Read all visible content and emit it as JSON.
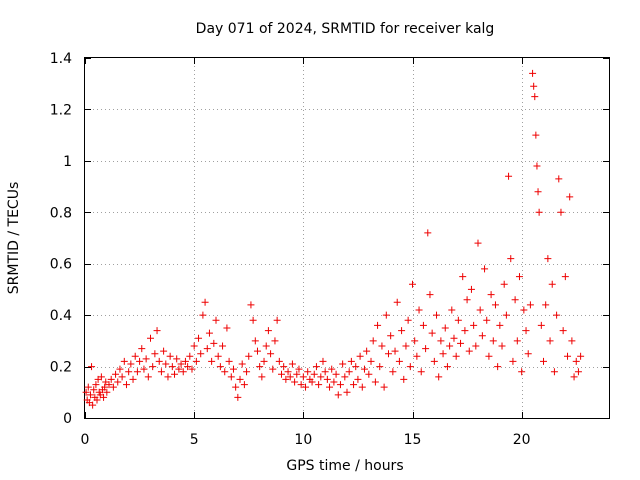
{
  "chart_data": {
    "type": "scatter",
    "title": "Day 071 of 2024, SRMTID for receiver kalg",
    "xlabel": "GPS time / hours",
    "ylabel": "SRMTID / TECUs",
    "xlim": [
      0,
      24
    ],
    "ylim": [
      0,
      1.4
    ],
    "x_ticks": [
      0,
      5,
      10,
      15,
      20
    ],
    "x_tick_labels": [
      "0",
      "5",
      "10",
      "15",
      "20"
    ],
    "y_ticks": [
      0,
      0.2,
      0.4,
      0.6,
      0.8,
      1,
      1.2,
      1.4
    ],
    "y_tick_labels": [
      "0",
      "0.2",
      "0.4",
      "0.6",
      "0.8",
      "1",
      "1.2",
      "1.4"
    ],
    "grid": true,
    "marker": "+",
    "color": "#ee0000",
    "series": [
      {
        "name": "SRMTID",
        "points": [
          [
            0.05,
            0.1
          ],
          [
            0.1,
            0.07
          ],
          [
            0.15,
            0.12
          ],
          [
            0.2,
            0.06
          ],
          [
            0.25,
            0.09
          ],
          [
            0.3,
            0.2
          ],
          [
            0.35,
            0.05
          ],
          [
            0.4,
            0.11
          ],
          [
            0.45,
            0.08
          ],
          [
            0.5,
            0.13
          ],
          [
            0.55,
            0.07
          ],
          [
            0.6,
            0.15
          ],
          [
            0.65,
            0.1
          ],
          [
            0.7,
            0.09
          ],
          [
            0.75,
            0.16
          ],
          [
            0.8,
            0.11
          ],
          [
            0.85,
            0.08
          ],
          [
            0.9,
            0.12
          ],
          [
            0.95,
            0.14
          ],
          [
            1.0,
            0.1
          ],
          [
            1.1,
            0.13
          ],
          [
            1.2,
            0.15
          ],
          [
            1.3,
            0.12
          ],
          [
            1.4,
            0.17
          ],
          [
            1.5,
            0.14
          ],
          [
            1.6,
            0.19
          ],
          [
            1.7,
            0.16
          ],
          [
            1.8,
            0.22
          ],
          [
            1.9,
            0.13
          ],
          [
            2.0,
            0.18
          ],
          [
            2.1,
            0.21
          ],
          [
            2.2,
            0.15
          ],
          [
            2.3,
            0.24
          ],
          [
            2.4,
            0.18
          ],
          [
            2.5,
            0.22
          ],
          [
            2.6,
            0.27
          ],
          [
            2.7,
            0.19
          ],
          [
            2.8,
            0.23
          ],
          [
            2.9,
            0.16
          ],
          [
            3.0,
            0.31
          ],
          [
            3.1,
            0.2
          ],
          [
            3.2,
            0.25
          ],
          [
            3.3,
            0.34
          ],
          [
            3.4,
            0.22
          ],
          [
            3.5,
            0.18
          ],
          [
            3.6,
            0.26
          ],
          [
            3.7,
            0.21
          ],
          [
            3.8,
            0.16
          ],
          [
            3.9,
            0.24
          ],
          [
            4.0,
            0.2
          ],
          [
            4.1,
            0.17
          ],
          [
            4.2,
            0.23
          ],
          [
            4.3,
            0.19
          ],
          [
            4.4,
            0.21
          ],
          [
            4.5,
            0.18
          ],
          [
            4.6,
            0.22
          ],
          [
            4.7,
            0.2
          ],
          [
            4.8,
            0.24
          ],
          [
            4.9,
            0.19
          ],
          [
            5.0,
            0.28
          ],
          [
            5.1,
            0.22
          ],
          [
            5.2,
            0.31
          ],
          [
            5.3,
            0.25
          ],
          [
            5.4,
            0.4
          ],
          [
            5.5,
            0.45
          ],
          [
            5.6,
            0.27
          ],
          [
            5.7,
            0.33
          ],
          [
            5.8,
            0.22
          ],
          [
            5.9,
            0.29
          ],
          [
            6.0,
            0.38
          ],
          [
            6.1,
            0.24
          ],
          [
            6.2,
            0.2
          ],
          [
            6.3,
            0.28
          ],
          [
            6.4,
            0.18
          ],
          [
            6.5,
            0.35
          ],
          [
            6.6,
            0.22
          ],
          [
            6.7,
            0.16
          ],
          [
            6.8,
            0.19
          ],
          [
            6.9,
            0.12
          ],
          [
            7.0,
            0.08
          ],
          [
            7.1,
            0.15
          ],
          [
            7.2,
            0.21
          ],
          [
            7.3,
            0.13
          ],
          [
            7.4,
            0.18
          ],
          [
            7.5,
            0.24
          ],
          [
            7.6,
            0.44
          ],
          [
            7.7,
            0.38
          ],
          [
            7.8,
            0.3
          ],
          [
            7.9,
            0.26
          ],
          [
            8.0,
            0.2
          ],
          [
            8.1,
            0.16
          ],
          [
            8.2,
            0.22
          ],
          [
            8.3,
            0.28
          ],
          [
            8.4,
            0.34
          ],
          [
            8.5,
            0.25
          ],
          [
            8.6,
            0.19
          ],
          [
            8.7,
            0.3
          ],
          [
            8.8,
            0.38
          ],
          [
            8.9,
            0.22
          ],
          [
            9.0,
            0.17
          ],
          [
            9.1,
            0.2
          ],
          [
            9.2,
            0.15
          ],
          [
            9.3,
            0.18
          ],
          [
            9.4,
            0.16
          ],
          [
            9.5,
            0.21
          ],
          [
            9.6,
            0.14
          ],
          [
            9.7,
            0.17
          ],
          [
            9.8,
            0.19
          ],
          [
            9.9,
            0.13
          ],
          [
            10.0,
            0.16
          ],
          [
            10.1,
            0.12
          ],
          [
            10.2,
            0.18
          ],
          [
            10.3,
            0.15
          ],
          [
            10.4,
            0.14
          ],
          [
            10.5,
            0.17
          ],
          [
            10.6,
            0.2
          ],
          [
            10.7,
            0.13
          ],
          [
            10.8,
            0.16
          ],
          [
            10.9,
            0.22
          ],
          [
            11.0,
            0.18
          ],
          [
            11.1,
            0.15
          ],
          [
            11.2,
            0.12
          ],
          [
            11.3,
            0.19
          ],
          [
            11.4,
            0.14
          ],
          [
            11.5,
            0.17
          ],
          [
            11.6,
            0.09
          ],
          [
            11.7,
            0.13
          ],
          [
            11.8,
            0.21
          ],
          [
            11.9,
            0.16
          ],
          [
            12.0,
            0.1
          ],
          [
            12.1,
            0.18
          ],
          [
            12.2,
            0.22
          ],
          [
            12.3,
            0.13
          ],
          [
            12.4,
            0.2
          ],
          [
            12.5,
            0.15
          ],
          [
            12.6,
            0.24
          ],
          [
            12.7,
            0.12
          ],
          [
            12.8,
            0.19
          ],
          [
            12.9,
            0.26
          ],
          [
            13.0,
            0.17
          ],
          [
            13.1,
            0.22
          ],
          [
            13.2,
            0.3
          ],
          [
            13.3,
            0.14
          ],
          [
            13.4,
            0.36
          ],
          [
            13.5,
            0.2
          ],
          [
            13.6,
            0.28
          ],
          [
            13.7,
            0.12
          ],
          [
            13.8,
            0.4
          ],
          [
            13.9,
            0.25
          ],
          [
            14.0,
            0.32
          ],
          [
            14.1,
            0.18
          ],
          [
            14.2,
            0.26
          ],
          [
            14.3,
            0.45
          ],
          [
            14.4,
            0.22
          ],
          [
            14.5,
            0.34
          ],
          [
            14.6,
            0.15
          ],
          [
            14.7,
            0.28
          ],
          [
            14.8,
            0.38
          ],
          [
            14.9,
            0.2
          ],
          [
            15.0,
            0.52
          ],
          [
            15.1,
            0.3
          ],
          [
            15.2,
            0.24
          ],
          [
            15.3,
            0.42
          ],
          [
            15.4,
            0.18
          ],
          [
            15.5,
            0.36
          ],
          [
            15.6,
            0.27
          ],
          [
            15.7,
            0.72
          ],
          [
            15.8,
            0.48
          ],
          [
            15.9,
            0.33
          ],
          [
            16.0,
            0.22
          ],
          [
            16.1,
            0.4
          ],
          [
            16.2,
            0.16
          ],
          [
            16.3,
            0.3
          ],
          [
            16.4,
            0.25
          ],
          [
            16.5,
            0.35
          ],
          [
            16.6,
            0.2
          ],
          [
            16.7,
            0.28
          ],
          [
            16.8,
            0.42
          ],
          [
            16.9,
            0.31
          ],
          [
            17.0,
            0.24
          ],
          [
            17.1,
            0.38
          ],
          [
            17.2,
            0.29
          ],
          [
            17.3,
            0.55
          ],
          [
            17.4,
            0.34
          ],
          [
            17.5,
            0.46
          ],
          [
            17.6,
            0.26
          ],
          [
            17.7,
            0.5
          ],
          [
            17.8,
            0.36
          ],
          [
            17.9,
            0.28
          ],
          [
            18.0,
            0.68
          ],
          [
            18.1,
            0.42
          ],
          [
            18.2,
            0.32
          ],
          [
            18.3,
            0.58
          ],
          [
            18.4,
            0.38
          ],
          [
            18.5,
            0.24
          ],
          [
            18.6,
            0.48
          ],
          [
            18.7,
            0.3
          ],
          [
            18.8,
            0.44
          ],
          [
            18.9,
            0.2
          ],
          [
            19.0,
            0.36
          ],
          [
            19.1,
            0.28
          ],
          [
            19.2,
            0.52
          ],
          [
            19.3,
            0.4
          ],
          [
            19.4,
            0.94
          ],
          [
            19.5,
            0.62
          ],
          [
            19.6,
            0.22
          ],
          [
            19.7,
            0.46
          ],
          [
            19.8,
            0.3
          ],
          [
            19.9,
            0.55
          ],
          [
            20.0,
            0.18
          ],
          [
            20.1,
            0.42
          ],
          [
            20.2,
            0.34
          ],
          [
            20.3,
            0.25
          ],
          [
            20.4,
            0.44
          ],
          [
            20.5,
            1.34
          ],
          [
            20.55,
            1.29
          ],
          [
            20.6,
            1.25
          ],
          [
            20.65,
            1.1
          ],
          [
            20.7,
            0.98
          ],
          [
            20.75,
            0.88
          ],
          [
            20.8,
            0.8
          ],
          [
            20.9,
            0.36
          ],
          [
            21.0,
            0.22
          ],
          [
            21.1,
            0.44
          ],
          [
            21.2,
            0.62
          ],
          [
            21.3,
            0.3
          ],
          [
            21.4,
            0.52
          ],
          [
            21.5,
            0.18
          ],
          [
            21.6,
            0.4
          ],
          [
            21.7,
            0.93
          ],
          [
            21.8,
            0.8
          ],
          [
            21.9,
            0.34
          ],
          [
            22.0,
            0.55
          ],
          [
            22.1,
            0.24
          ],
          [
            22.2,
            0.86
          ],
          [
            22.3,
            0.3
          ],
          [
            22.4,
            0.16
          ],
          [
            22.5,
            0.22
          ],
          [
            22.6,
            0.18
          ],
          [
            22.7,
            0.24
          ]
        ]
      }
    ]
  }
}
